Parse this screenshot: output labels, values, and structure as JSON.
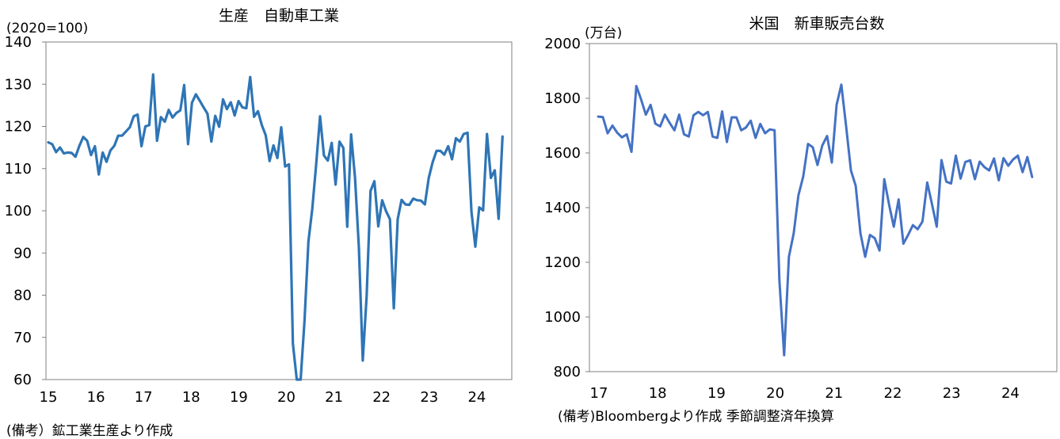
{
  "charts": [
    {
      "title": "生産　自動車工業",
      "unit": "(2020=100)",
      "note": "(備考）鉱工業生産より作成"
    },
    {
      "title": "米国　新車販売台数",
      "unit": "(万台)",
      "note": "(備考)Bloombergより作成 季節調整済年換算"
    }
  ],
  "chart_data": [
    {
      "type": "line",
      "title": "生産　自動車工業",
      "ylabel": "(2020=100)",
      "ylim": [
        60,
        140
      ],
      "yticks": [
        "140",
        "130",
        "120",
        "110",
        "100",
        "90",
        "80",
        "70",
        "60"
      ],
      "xticks": [
        "15",
        "16",
        "17",
        "18",
        "19",
        "20",
        "21",
        "22",
        "23",
        "24"
      ],
      "grid": false,
      "series_color": "#2E75B6",
      "series": [
        {
          "x_start": "2015-01",
          "values": [
            116.2,
            115.8,
            113.9,
            115.0,
            113.6,
            113.8,
            113.7,
            112.8,
            115.4,
            117.5,
            116.6,
            113.2,
            115.3,
            108.6,
            113.8,
            111.6,
            114.3,
            115.4,
            117.8,
            117.8,
            118.8,
            119.8,
            122.4,
            122.8,
            115.3,
            120.0,
            120.3,
            132.3,
            116.6,
            122.2,
            121.1,
            123.9,
            122.1,
            123.2,
            123.8,
            129.8,
            115.8,
            125.6,
            127.6,
            126.1,
            124.5,
            123.0,
            116.4,
            122.5,
            119.9,
            126.4,
            124.1,
            125.7,
            122.6,
            126.0,
            124.5,
            124.3,
            131.7,
            122.3,
            123.6,
            120.3,
            117.9,
            111.8,
            115.5,
            112.5,
            119.8,
            110.5,
            111.0,
            68.5,
            60.0,
            60.0,
            74.0,
            92.7,
            100.5,
            111.0,
            122.4,
            113.1,
            111.9,
            116.1,
            106.2,
            116.4,
            114.9,
            96.2,
            118.1,
            107.9,
            91.3,
            64.5,
            79.8,
            104.7,
            107.0,
            96.3,
            102.5,
            99.9,
            98.0,
            76.9,
            98.0,
            102.6,
            101.5,
            101.4,
            102.9,
            102.5,
            102.4,
            101.5,
            107.8,
            111.5,
            114.2,
            114.2,
            113.3,
            115.3,
            112.2,
            117.2,
            116.4,
            118.2,
            118.5,
            99.8,
            91.5,
            100.8,
            100.1,
            118.2,
            107.8,
            109.6,
            98.1,
            117.6
          ]
        }
      ]
    },
    {
      "type": "line",
      "title": "米国　新車販売台数",
      "ylabel": "(万台)",
      "ylim": [
        800,
        2000
      ],
      "yticks": [
        "2000",
        "1800",
        "1600",
        "1400",
        "1200",
        "1000",
        "800"
      ],
      "xticks": [
        "17",
        "18",
        "19",
        "20",
        "21",
        "22",
        "23",
        "24"
      ],
      "grid": false,
      "series_color": "#4472C4",
      "series": [
        {
          "x_start": "2017-01",
          "values": [
            1733,
            1731,
            1672,
            1700,
            1674,
            1657,
            1668,
            1604,
            1845,
            1796,
            1740,
            1776,
            1707,
            1697,
            1740,
            1710,
            1683,
            1740,
            1668,
            1660,
            1738,
            1750,
            1738,
            1750,
            1660,
            1655,
            1752,
            1640,
            1730,
            1730,
            1683,
            1693,
            1718,
            1655,
            1706,
            1672,
            1686,
            1683,
            1134,
            860,
            1220,
            1305,
            1445,
            1514,
            1633,
            1621,
            1556,
            1627,
            1662,
            1565,
            1776,
            1850,
            1698,
            1536,
            1480,
            1306,
            1220,
            1300,
            1288,
            1243,
            1504,
            1412,
            1330,
            1430,
            1268,
            1300,
            1336,
            1321,
            1349,
            1492,
            1413,
            1330,
            1574,
            1495,
            1488,
            1590,
            1506,
            1567,
            1573,
            1504,
            1568,
            1548,
            1536,
            1580,
            1500,
            1581,
            1553,
            1576,
            1590,
            1530,
            1585,
            1512
          ]
        }
      ]
    }
  ]
}
